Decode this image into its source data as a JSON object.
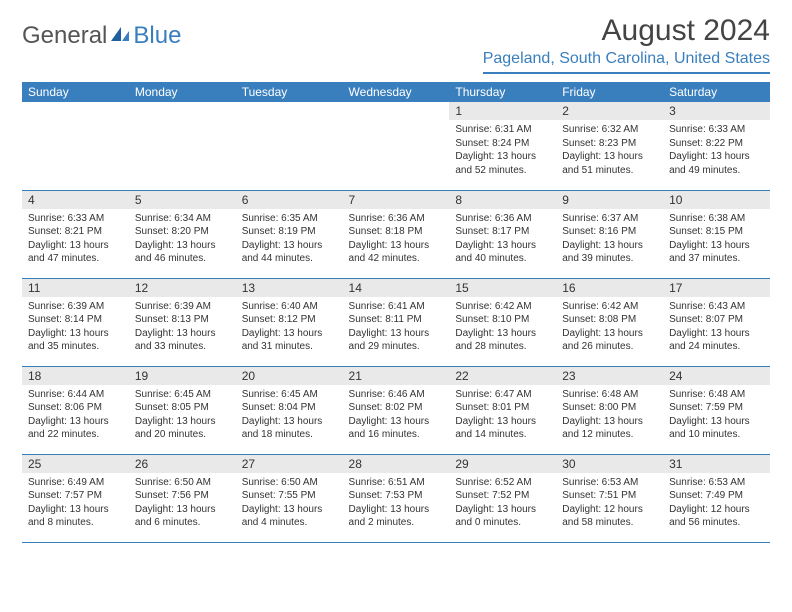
{
  "logo": {
    "general": "General",
    "blue": "Blue"
  },
  "title": "August 2024",
  "location": "Pageland, South Carolina, United States",
  "colors": {
    "brand_blue": "#3a7fbd",
    "header_bg": "#3a7fbd",
    "header_fg": "#ffffff",
    "daynum_bg": "#e9e9e9",
    "text": "#333333",
    "logo_gray": "#555555"
  },
  "day_headers": [
    "Sunday",
    "Monday",
    "Tuesday",
    "Wednesday",
    "Thursday",
    "Friday",
    "Saturday"
  ],
  "weeks": [
    [
      {
        "empty": true
      },
      {
        "empty": true
      },
      {
        "empty": true
      },
      {
        "empty": true
      },
      {
        "day": "1",
        "sunrise": "Sunrise: 6:31 AM",
        "sunset": "Sunset: 8:24 PM",
        "daylight1": "Daylight: 13 hours",
        "daylight2": "and 52 minutes."
      },
      {
        "day": "2",
        "sunrise": "Sunrise: 6:32 AM",
        "sunset": "Sunset: 8:23 PM",
        "daylight1": "Daylight: 13 hours",
        "daylight2": "and 51 minutes."
      },
      {
        "day": "3",
        "sunrise": "Sunrise: 6:33 AM",
        "sunset": "Sunset: 8:22 PM",
        "daylight1": "Daylight: 13 hours",
        "daylight2": "and 49 minutes."
      }
    ],
    [
      {
        "day": "4",
        "sunrise": "Sunrise: 6:33 AM",
        "sunset": "Sunset: 8:21 PM",
        "daylight1": "Daylight: 13 hours",
        "daylight2": "and 47 minutes."
      },
      {
        "day": "5",
        "sunrise": "Sunrise: 6:34 AM",
        "sunset": "Sunset: 8:20 PM",
        "daylight1": "Daylight: 13 hours",
        "daylight2": "and 46 minutes."
      },
      {
        "day": "6",
        "sunrise": "Sunrise: 6:35 AM",
        "sunset": "Sunset: 8:19 PM",
        "daylight1": "Daylight: 13 hours",
        "daylight2": "and 44 minutes."
      },
      {
        "day": "7",
        "sunrise": "Sunrise: 6:36 AM",
        "sunset": "Sunset: 8:18 PM",
        "daylight1": "Daylight: 13 hours",
        "daylight2": "and 42 minutes."
      },
      {
        "day": "8",
        "sunrise": "Sunrise: 6:36 AM",
        "sunset": "Sunset: 8:17 PM",
        "daylight1": "Daylight: 13 hours",
        "daylight2": "and 40 minutes."
      },
      {
        "day": "9",
        "sunrise": "Sunrise: 6:37 AM",
        "sunset": "Sunset: 8:16 PM",
        "daylight1": "Daylight: 13 hours",
        "daylight2": "and 39 minutes."
      },
      {
        "day": "10",
        "sunrise": "Sunrise: 6:38 AM",
        "sunset": "Sunset: 8:15 PM",
        "daylight1": "Daylight: 13 hours",
        "daylight2": "and 37 minutes."
      }
    ],
    [
      {
        "day": "11",
        "sunrise": "Sunrise: 6:39 AM",
        "sunset": "Sunset: 8:14 PM",
        "daylight1": "Daylight: 13 hours",
        "daylight2": "and 35 minutes."
      },
      {
        "day": "12",
        "sunrise": "Sunrise: 6:39 AM",
        "sunset": "Sunset: 8:13 PM",
        "daylight1": "Daylight: 13 hours",
        "daylight2": "and 33 minutes."
      },
      {
        "day": "13",
        "sunrise": "Sunrise: 6:40 AM",
        "sunset": "Sunset: 8:12 PM",
        "daylight1": "Daylight: 13 hours",
        "daylight2": "and 31 minutes."
      },
      {
        "day": "14",
        "sunrise": "Sunrise: 6:41 AM",
        "sunset": "Sunset: 8:11 PM",
        "daylight1": "Daylight: 13 hours",
        "daylight2": "and 29 minutes."
      },
      {
        "day": "15",
        "sunrise": "Sunrise: 6:42 AM",
        "sunset": "Sunset: 8:10 PM",
        "daylight1": "Daylight: 13 hours",
        "daylight2": "and 28 minutes."
      },
      {
        "day": "16",
        "sunrise": "Sunrise: 6:42 AM",
        "sunset": "Sunset: 8:08 PM",
        "daylight1": "Daylight: 13 hours",
        "daylight2": "and 26 minutes."
      },
      {
        "day": "17",
        "sunrise": "Sunrise: 6:43 AM",
        "sunset": "Sunset: 8:07 PM",
        "daylight1": "Daylight: 13 hours",
        "daylight2": "and 24 minutes."
      }
    ],
    [
      {
        "day": "18",
        "sunrise": "Sunrise: 6:44 AM",
        "sunset": "Sunset: 8:06 PM",
        "daylight1": "Daylight: 13 hours",
        "daylight2": "and 22 minutes."
      },
      {
        "day": "19",
        "sunrise": "Sunrise: 6:45 AM",
        "sunset": "Sunset: 8:05 PM",
        "daylight1": "Daylight: 13 hours",
        "daylight2": "and 20 minutes."
      },
      {
        "day": "20",
        "sunrise": "Sunrise: 6:45 AM",
        "sunset": "Sunset: 8:04 PM",
        "daylight1": "Daylight: 13 hours",
        "daylight2": "and 18 minutes."
      },
      {
        "day": "21",
        "sunrise": "Sunrise: 6:46 AM",
        "sunset": "Sunset: 8:02 PM",
        "daylight1": "Daylight: 13 hours",
        "daylight2": "and 16 minutes."
      },
      {
        "day": "22",
        "sunrise": "Sunrise: 6:47 AM",
        "sunset": "Sunset: 8:01 PM",
        "daylight1": "Daylight: 13 hours",
        "daylight2": "and 14 minutes."
      },
      {
        "day": "23",
        "sunrise": "Sunrise: 6:48 AM",
        "sunset": "Sunset: 8:00 PM",
        "daylight1": "Daylight: 13 hours",
        "daylight2": "and 12 minutes."
      },
      {
        "day": "24",
        "sunrise": "Sunrise: 6:48 AM",
        "sunset": "Sunset: 7:59 PM",
        "daylight1": "Daylight: 13 hours",
        "daylight2": "and 10 minutes."
      }
    ],
    [
      {
        "day": "25",
        "sunrise": "Sunrise: 6:49 AM",
        "sunset": "Sunset: 7:57 PM",
        "daylight1": "Daylight: 13 hours",
        "daylight2": "and 8 minutes."
      },
      {
        "day": "26",
        "sunrise": "Sunrise: 6:50 AM",
        "sunset": "Sunset: 7:56 PM",
        "daylight1": "Daylight: 13 hours",
        "daylight2": "and 6 minutes."
      },
      {
        "day": "27",
        "sunrise": "Sunrise: 6:50 AM",
        "sunset": "Sunset: 7:55 PM",
        "daylight1": "Daylight: 13 hours",
        "daylight2": "and 4 minutes."
      },
      {
        "day": "28",
        "sunrise": "Sunrise: 6:51 AM",
        "sunset": "Sunset: 7:53 PM",
        "daylight1": "Daylight: 13 hours",
        "daylight2": "and 2 minutes."
      },
      {
        "day": "29",
        "sunrise": "Sunrise: 6:52 AM",
        "sunset": "Sunset: 7:52 PM",
        "daylight1": "Daylight: 13 hours",
        "daylight2": "and 0 minutes."
      },
      {
        "day": "30",
        "sunrise": "Sunrise: 6:53 AM",
        "sunset": "Sunset: 7:51 PM",
        "daylight1": "Daylight: 12 hours",
        "daylight2": "and 58 minutes."
      },
      {
        "day": "31",
        "sunrise": "Sunrise: 6:53 AM",
        "sunset": "Sunset: 7:49 PM",
        "daylight1": "Daylight: 12 hours",
        "daylight2": "and 56 minutes."
      }
    ]
  ]
}
